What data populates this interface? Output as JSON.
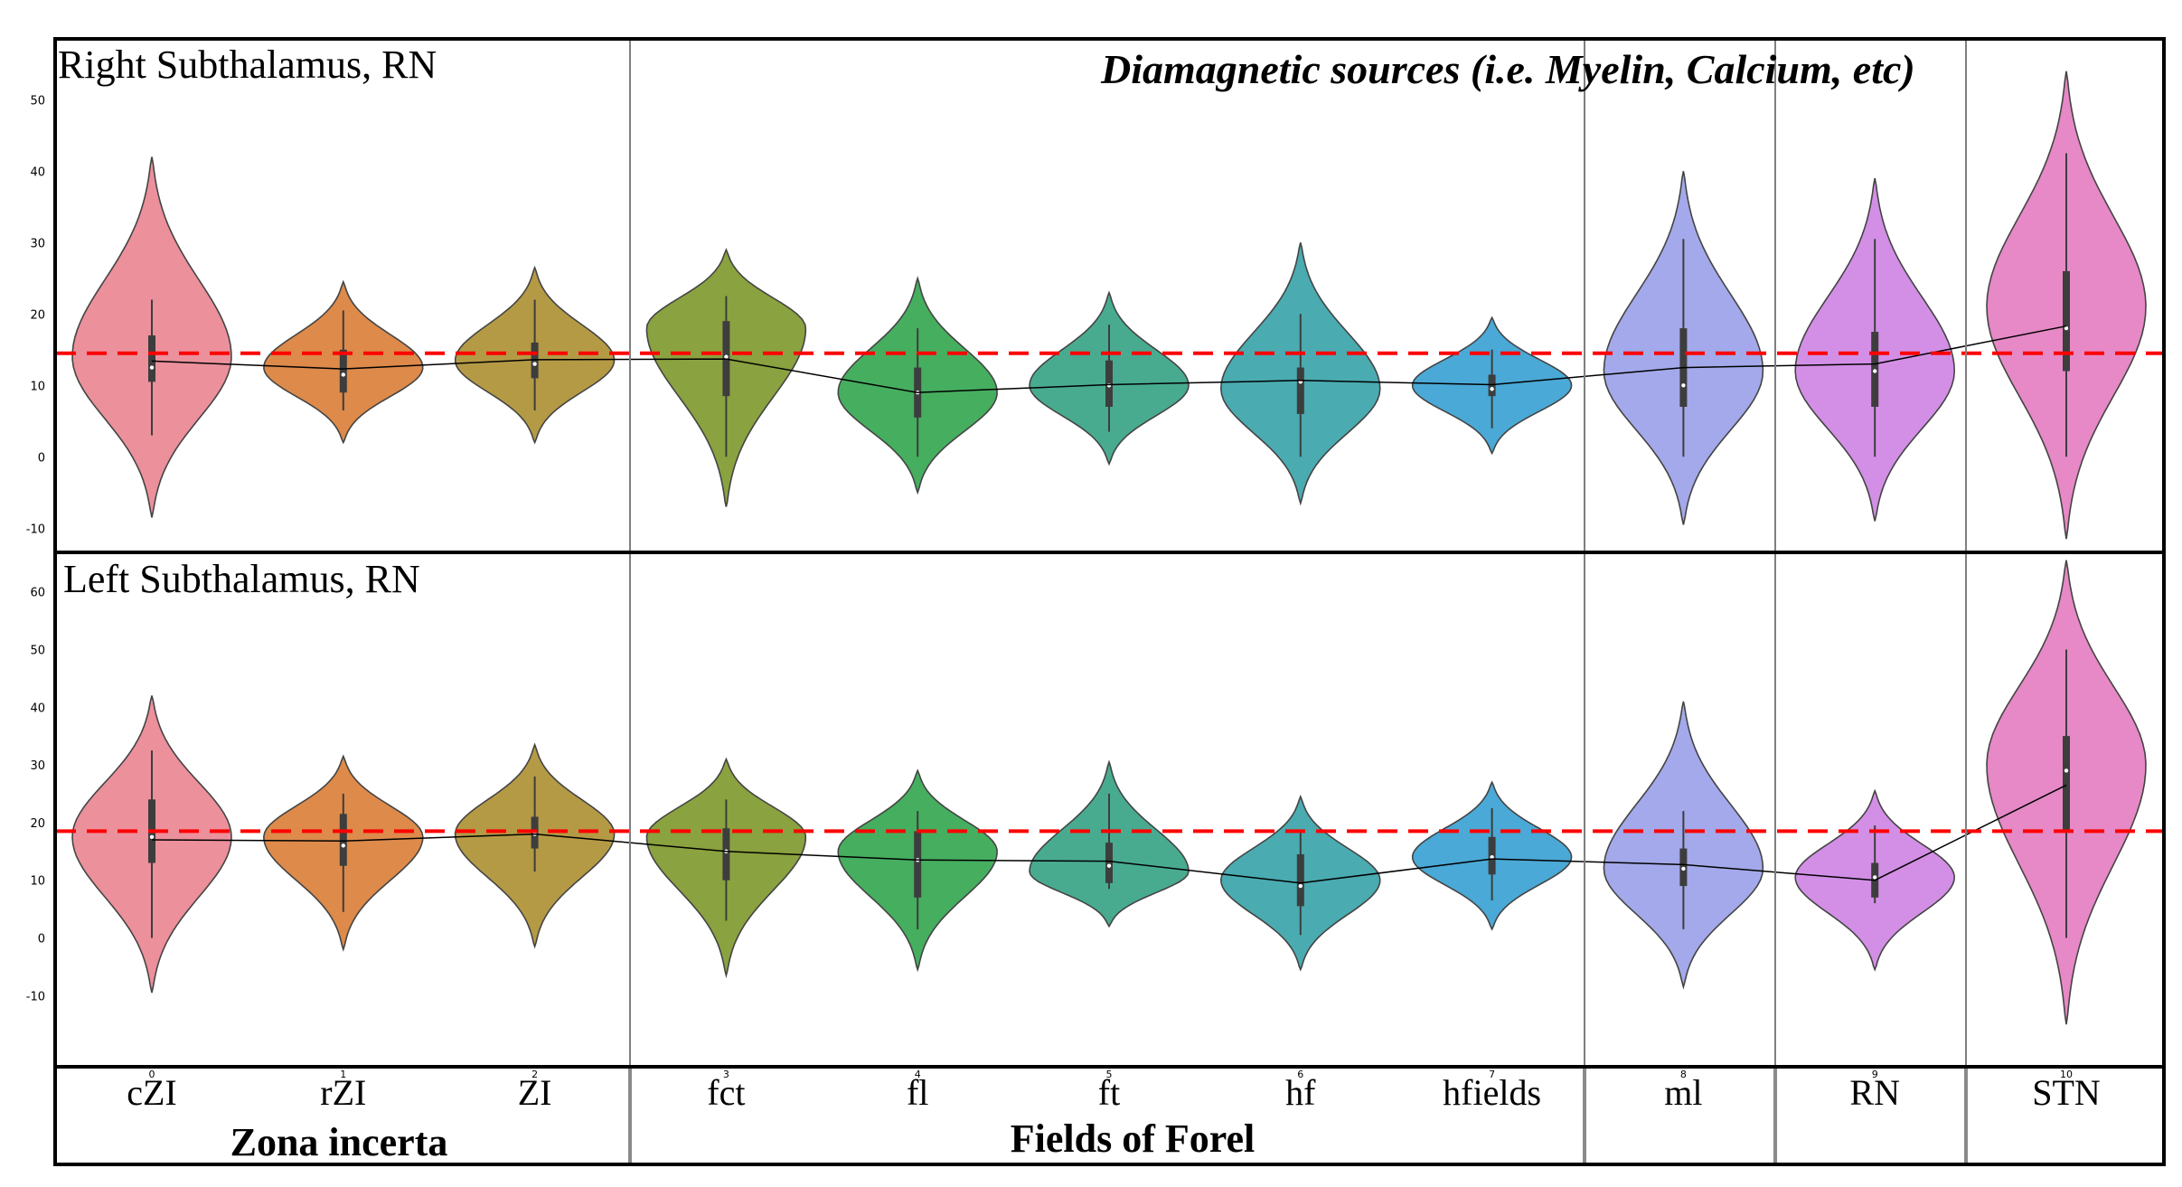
{
  "chart_data": {
    "type": "violin",
    "categories": [
      "cZI",
      "rZI",
      "ZI",
      "fct",
      "fl",
      "ft",
      "hf",
      "hfields",
      "ml",
      "RN",
      "STN"
    ],
    "category_indices": [
      "0",
      "1",
      "2",
      "3",
      "4",
      "5",
      "6",
      "7",
      "8",
      "9",
      "10"
    ],
    "colors": [
      "#ec909c",
      "#dd8a4b",
      "#b59a45",
      "#8aa23f",
      "#46ae5f",
      "#48ab90",
      "#4aabb1",
      "#4aa9d6",
      "#a3a9ea",
      "#d38fe6",
      "#e689c6",
      "#ff0000"
    ],
    "groups": [
      {
        "label": "Zona incerta",
        "categories": [
          "cZI",
          "rZI",
          "ZI"
        ]
      },
      {
        "label": "Fields of Forel",
        "categories": [
          "fct",
          "fl",
          "ft",
          "hf",
          "hfields"
        ]
      }
    ],
    "annotation": "Diamagnetic sources (i.e. Myelin, Calcium, etc)",
    "panels": [
      {
        "title": "Right Subthalamus, RN",
        "ylim": [
          -13,
          57
        ],
        "yticks": [
          "-10",
          "0",
          "10",
          "20",
          "30",
          "40",
          "50"
        ],
        "reference_line": 14.5,
        "means": [
          13.4,
          12.3,
          13.6,
          13.7,
          9.0,
          10.1,
          10.7,
          10.1,
          12.5,
          13.0,
          18.3
        ],
        "medians": [
          12.5,
          11.5,
          13.0,
          14.0,
          9.0,
          10.0,
          10.5,
          9.5,
          10.0,
          12.0,
          18.0
        ],
        "q1": [
          10.5,
          9.0,
          11.0,
          8.5,
          5.5,
          7.0,
          6.0,
          8.5,
          7.0,
          7.0,
          12.0
        ],
        "q3": [
          17.0,
          15.0,
          16.0,
          19.0,
          12.5,
          13.5,
          12.5,
          11.5,
          18.0,
          17.5,
          26.0
        ],
        "whisker_low": [
          3.0,
          6.5,
          6.5,
          0.0,
          0.0,
          3.5,
          0.0,
          4.0,
          0.0,
          0.0,
          0.0
        ],
        "whisker_high": [
          22.0,
          20.5,
          22.0,
          22.5,
          18.0,
          18.5,
          20.0,
          15.0,
          30.5,
          30.5,
          42.5
        ],
        "violin_min": [
          -8.5,
          2.0,
          2.0,
          -7.0,
          -5.0,
          -1.0,
          -6.5,
          0.5,
          -9.5,
          -9.0,
          -11.5
        ],
        "violin_max": [
          42.0,
          24.5,
          26.5,
          29.0,
          25.0,
          23.0,
          30.0,
          19.5,
          40.0,
          39.0,
          54.0
        ],
        "violin_peak": [
          14.0,
          12.5,
          13.5,
          18.0,
          9.0,
          10.0,
          9.5,
          10.0,
          12.0,
          12.0,
          21.0
        ]
      },
      {
        "title": "Left Subthalamus, RN",
        "ylim": [
          -19,
          67
        ],
        "yticks": [
          "-10",
          "0",
          "10",
          "20",
          "30",
          "40",
          "50",
          "60"
        ],
        "reference_line": 18.5,
        "means": [
          17.0,
          16.8,
          18.0,
          15.0,
          13.5,
          13.3,
          9.5,
          13.7,
          12.7,
          10.0,
          26.5
        ],
        "medians": [
          17.5,
          16.0,
          18.0,
          15.0,
          13.5,
          12.5,
          9.0,
          14.0,
          12.0,
          10.5,
          29.0
        ],
        "q1": [
          13.0,
          12.5,
          15.5,
          10.0,
          7.0,
          9.5,
          5.5,
          11.0,
          9.0,
          7.0,
          18.5
        ],
        "q3": [
          24.0,
          21.5,
          21.0,
          19.0,
          18.5,
          16.5,
          14.5,
          17.5,
          15.5,
          13.0,
          35.0
        ],
        "whisker_low": [
          0.0,
          4.5,
          11.5,
          3.0,
          1.5,
          8.5,
          0.5,
          6.5,
          1.5,
          6.0,
          0.0
        ],
        "whisker_high": [
          32.5,
          25.0,
          28.0,
          24.0,
          22.0,
          25.0,
          18.5,
          22.5,
          22.0,
          19.5,
          50.0
        ],
        "violin_min": [
          -9.5,
          -2.0,
          -1.5,
          -6.5,
          -5.5,
          2.0,
          -5.5,
          1.5,
          -8.5,
          -5.5,
          -15.0
        ],
        "violin_max": [
          42.0,
          31.5,
          33.5,
          31.0,
          29.0,
          30.5,
          24.5,
          27.0,
          41.0,
          25.5,
          65.5
        ],
        "violin_peak": [
          17.5,
          17.5,
          18.0,
          17.5,
          15.0,
          11.5,
          10.0,
          14.0,
          12.0,
          10.5,
          30.0
        ]
      }
    ]
  }
}
